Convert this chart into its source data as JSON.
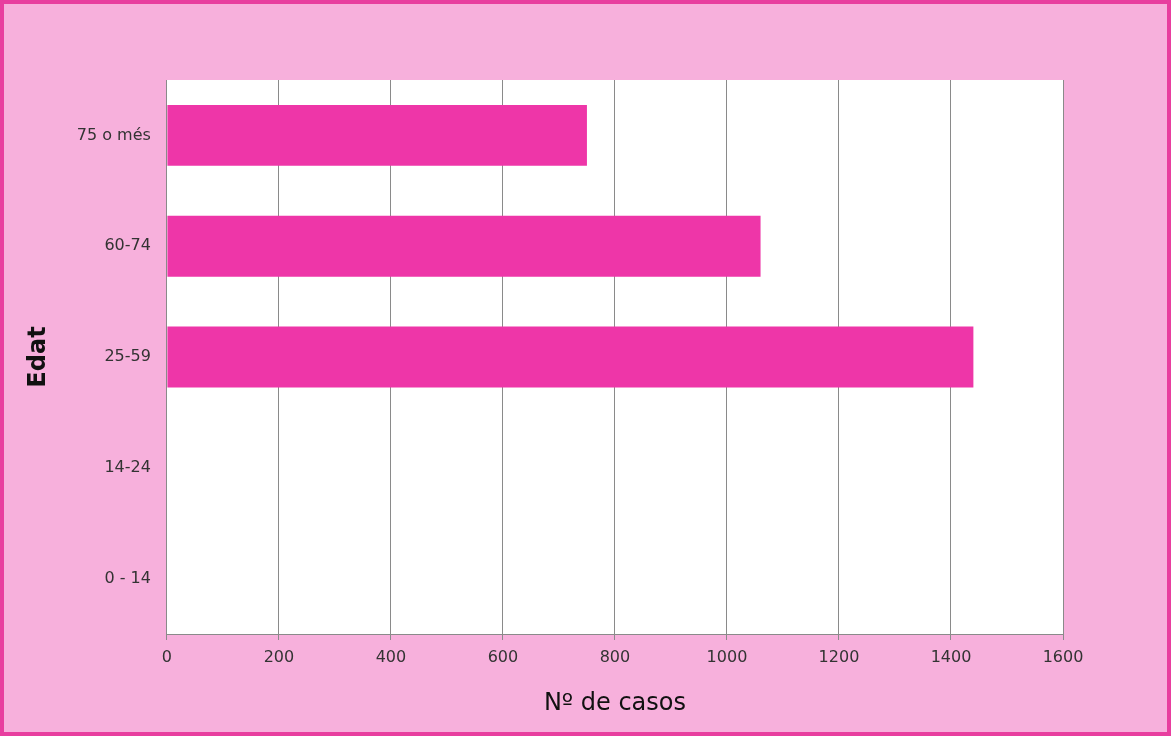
{
  "chart_data": {
    "type": "bar",
    "orientation": "horizontal",
    "xlabel": "Nº de casos",
    "ylabel": "Edat",
    "categories": [
      "75 o més",
      "60-74",
      "25-59",
      "14-24",
      "0 - 14"
    ],
    "values": [
      750,
      1060,
      1440,
      0,
      0
    ],
    "color": "#ee36a8",
    "xlim": [
      0,
      1600
    ],
    "xticks": [
      0,
      200,
      400,
      600,
      800,
      1000,
      1200,
      1400,
      1600
    ],
    "grid": "x",
    "legend": false
  }
}
